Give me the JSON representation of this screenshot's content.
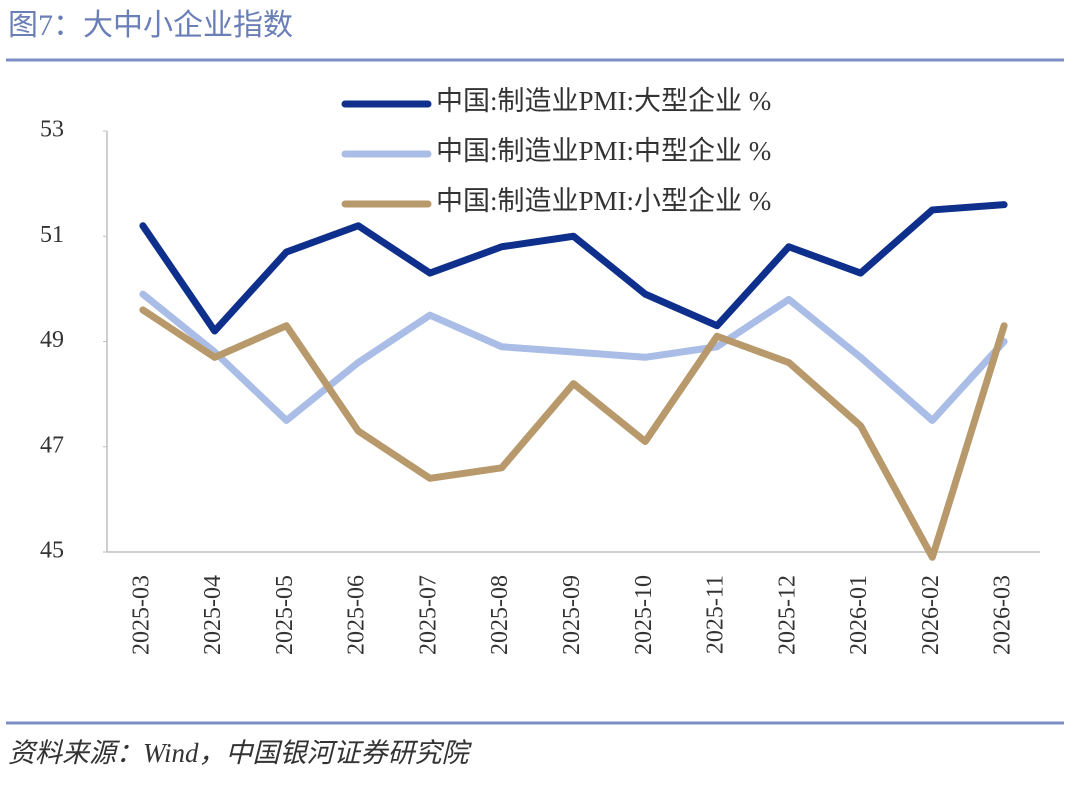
{
  "chart_data": {
    "type": "line",
    "title": "图7：大中小企业指数",
    "source": "资料来源：Wind，中国银河证券研究院",
    "categories": [
      "2025-03",
      "2025-04",
      "2025-05",
      "2025-06",
      "2025-07",
      "2025-08",
      "2025-09",
      "2025-10",
      "2025-11",
      "2025-12",
      "2026-01",
      "2026-02",
      "2026-03"
    ],
    "series": [
      {
        "name": "中国:制造业PMI:大型企业 %",
        "color": "#0f2f8c",
        "values": [
          51.2,
          49.2,
          50.7,
          51.2,
          50.3,
          50.8,
          51.0,
          49.9,
          49.3,
          50.8,
          50.3,
          51.5,
          51.6
        ]
      },
      {
        "name": "中国:制造业PMI:中型企业 %",
        "color": "#a9bde6",
        "values": [
          49.9,
          48.8,
          47.5,
          48.6,
          49.5,
          48.9,
          48.8,
          48.7,
          48.9,
          49.8,
          48.7,
          47.5,
          49.0
        ]
      },
      {
        "name": "中国:制造业PMI:小型企业 %",
        "color": "#b8996b",
        "values": [
          49.6,
          48.7,
          49.3,
          47.3,
          46.4,
          46.6,
          48.2,
          47.1,
          49.1,
          48.6,
          47.4,
          44.9,
          49.3
        ]
      }
    ],
    "ylim": [
      45,
      53
    ],
    "yticks": [
      45,
      47,
      49,
      51,
      53
    ],
    "legend": "top"
  }
}
